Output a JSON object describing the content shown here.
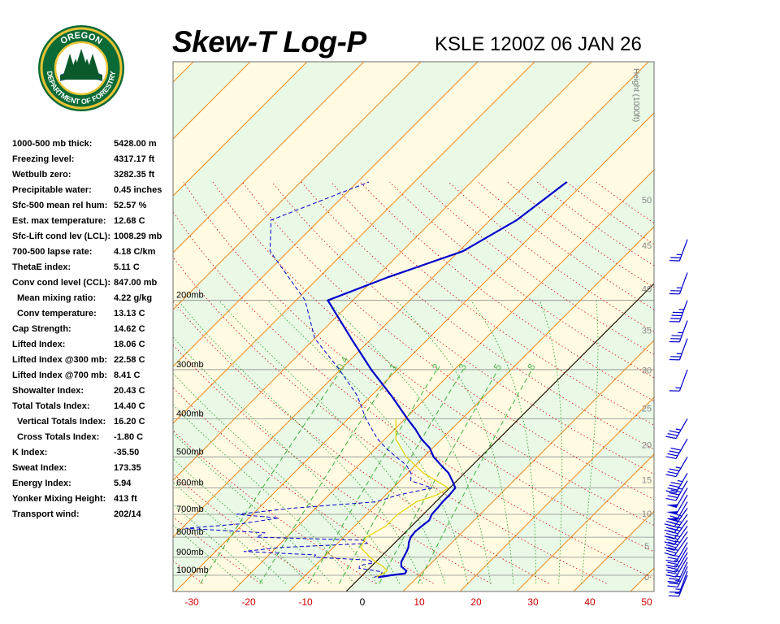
{
  "header": {
    "logo_text_top": "OREGON",
    "logo_text_bottom": "DEPARTMENT OF FORESTRY",
    "title": "Skew-T Log-P",
    "station": "KSLE 1200Z 06 JAN 26"
  },
  "stats": [
    {
      "label": "1000-500 mb thick:",
      "value": "5428.00 m",
      "indent": false
    },
    {
      "label": "Freezing level:",
      "value": "4317.17 ft",
      "indent": false
    },
    {
      "label": "Wetbulb zero:",
      "value": "3282.35 ft",
      "indent": false
    },
    {
      "label": "Precipitable water:",
      "value": "0.45 inches",
      "indent": false
    },
    {
      "label": "Sfc-500 mean rel hum:",
      "value": "52.57 %",
      "indent": false
    },
    {
      "label": "Est. max temperature:",
      "value": "12.68 C",
      "indent": false
    },
    {
      "label": "Sfc-Lift cond lev (LCL):",
      "value": "1008.29 mb",
      "indent": false
    },
    {
      "label": "700-500 lapse rate:",
      "value": "4.18 C/km",
      "indent": false
    },
    {
      "label": "ThetaE index:",
      "value": "5.11 C",
      "indent": false
    },
    {
      "label": "Conv cond level (CCL):",
      "value": "847.00 mb",
      "indent": false
    },
    {
      "label": "Mean mixing ratio:",
      "value": "4.22 g/kg",
      "indent": true
    },
    {
      "label": "Conv temperature:",
      "value": "13.13 C",
      "indent": true
    },
    {
      "label": "Cap Strength:",
      "value": "14.62 C",
      "indent": false
    },
    {
      "label": "Lifted Index:",
      "value": "18.06 C",
      "indent": false
    },
    {
      "label": "Lifted Index @300 mb:",
      "value": "22.58 C",
      "indent": false
    },
    {
      "label": "Lifted Index @700 mb:",
      "value": "8.41 C",
      "indent": false
    },
    {
      "label": "Showalter Index:",
      "value": "20.43 C",
      "indent": false
    },
    {
      "label": "Total Totals Index:",
      "value": "14.40 C",
      "indent": false
    },
    {
      "label": "Vertical Totals Index:",
      "value": "16.20 C",
      "indent": true
    },
    {
      "label": "Cross Totals Index:",
      "value": "-1.80 C",
      "indent": true
    },
    {
      "label": "K Index:",
      "value": "-35.50",
      "indent": false
    },
    {
      "label": "Sweat Index:",
      "value": "173.35",
      "indent": false
    },
    {
      "label": "Energy Index:",
      "value": "5.94",
      "indent": false
    },
    {
      "label": "Yonker Mixing Height:",
      "value": "413 ft",
      "indent": false
    },
    {
      "label": "Transport wind:",
      "value": "202/14",
      "indent": false
    }
  ],
  "chart_data": {
    "type": "line",
    "title": "Skew-T Log-P",
    "xlabel": "",
    "ylabel": "",
    "x_ticks": [
      "-30",
      "-20",
      "-10",
      "0",
      "10",
      "20",
      "30",
      "40",
      "50"
    ],
    "pressure_labels": [
      {
        "p": 200,
        "label": "200mb"
      },
      {
        "p": 300,
        "label": "300mb"
      },
      {
        "p": 400,
        "label": "400mb"
      },
      {
        "p": 500,
        "label": "500mb"
      },
      {
        "p": 600,
        "label": "600mb"
      },
      {
        "p": 700,
        "label": "700mb"
      },
      {
        "p": 800,
        "label": "800mb"
      },
      {
        "p": 900,
        "label": "900mb"
      },
      {
        "p": 1000,
        "label": "1000mb"
      }
    ],
    "height_axis": {
      "label": "Height (1000ft)",
      "ticks": [
        {
          "p": 1010,
          "label": "0"
        },
        {
          "p": 843,
          "label": "5"
        },
        {
          "p": 697,
          "label": "10"
        },
        {
          "p": 572,
          "label": "15"
        },
        {
          "p": 466,
          "label": "20"
        },
        {
          "p": 376,
          "label": "25"
        },
        {
          "p": 301,
          "label": "30"
        },
        {
          "p": 238,
          "label": "35"
        },
        {
          "p": 187,
          "label": "40"
        },
        {
          "p": 145,
          "label": "45"
        },
        {
          "p": 111,
          "label": "50"
        }
      ]
    },
    "mixing_ratio_labels": [
      "0.4",
      "1",
      "2",
      "3",
      "5",
      "8"
    ],
    "mixing_ratio_values": [
      0.4,
      1,
      2,
      3,
      5,
      8
    ],
    "series": [
      {
        "role": "temperature",
        "color": "#0000cc",
        "style": "solid",
        "points": [
          {
            "p": 1012,
            "t": 3.1
          },
          {
            "p": 1000,
            "t": 5.0
          },
          {
            "p": 990,
            "t": 7.2
          },
          {
            "p": 975,
            "t": 7.0
          },
          {
            "p": 950,
            "t": 5.3
          },
          {
            "p": 925,
            "t": 4.5
          },
          {
            "p": 900,
            "t": 4.1
          },
          {
            "p": 875,
            "t": 3.7
          },
          {
            "p": 850,
            "t": 3.2
          },
          {
            "p": 825,
            "t": 2.4
          },
          {
            "p": 800,
            "t": 1.8
          },
          {
            "p": 775,
            "t": 1.6
          },
          {
            "p": 750,
            "t": 1.8
          },
          {
            "p": 725,
            "t": 2.1
          },
          {
            "p": 700,
            "t": 1.5
          },
          {
            "p": 675,
            "t": 1.4
          },
          {
            "p": 650,
            "t": 1.2
          },
          {
            "p": 625,
            "t": 1.2
          },
          {
            "p": 600,
            "t": 1.0
          },
          {
            "p": 575,
            "t": -0.8
          },
          {
            "p": 550,
            "t": -2.8
          },
          {
            "p": 525,
            "t": -5.5
          },
          {
            "p": 500,
            "t": -8.3
          },
          {
            "p": 475,
            "t": -10.5
          },
          {
            "p": 450,
            "t": -13.6
          },
          {
            "p": 425,
            "t": -16.4
          },
          {
            "p": 400,
            "t": -19.6
          },
          {
            "p": 350,
            "t": -26.4
          },
          {
            "p": 300,
            "t": -34.6
          },
          {
            "p": 250,
            "t": -43.6
          },
          {
            "p": 200,
            "t": -54.4
          },
          {
            "p": 175,
            "t": -48.0
          },
          {
            "p": 150,
            "t": -39.3
          },
          {
            "p": 125,
            "t": -35.3
          },
          {
            "p": 100,
            "t": -33.2
          }
        ]
      },
      {
        "role": "dewpoint",
        "color": "#0000cc",
        "style": "dashed",
        "points": [
          {
            "p": 1012,
            "t": 2.4
          },
          {
            "p": 1000,
            "t": 3.2
          },
          {
            "p": 980,
            "t": 2.9
          },
          {
            "p": 960,
            "t": -1.8
          },
          {
            "p": 945,
            "t": -2.2
          },
          {
            "p": 930,
            "t": -0.3
          },
          {
            "p": 915,
            "t": -1.5
          },
          {
            "p": 900,
            "t": -11.6
          },
          {
            "p": 888,
            "t": -11.8
          },
          {
            "p": 870,
            "t": -25.0
          },
          {
            "p": 850,
            "t": -19.3
          },
          {
            "p": 830,
            "t": -4.8
          },
          {
            "p": 815,
            "t": -5.5
          },
          {
            "p": 800,
            "t": -25.3
          },
          {
            "p": 780,
            "t": -24.6
          },
          {
            "p": 760,
            "t": -39.3
          },
          {
            "p": 740,
            "t": -30.4
          },
          {
            "p": 715,
            "t": -24.8
          },
          {
            "p": 700,
            "t": -32.8
          },
          {
            "p": 675,
            "t": -24.0
          },
          {
            "p": 650,
            "t": -10.4
          },
          {
            "p": 625,
            "t": -7.8
          },
          {
            "p": 600,
            "t": -3.1
          },
          {
            "p": 575,
            "t": -8.1
          },
          {
            "p": 550,
            "t": -9.4
          },
          {
            "p": 525,
            "t": -11.6
          },
          {
            "p": 500,
            "t": -14.9
          },
          {
            "p": 475,
            "t": -18.2
          },
          {
            "p": 450,
            "t": -21.3
          },
          {
            "p": 400,
            "t": -26.9
          },
          {
            "p": 350,
            "t": -32.4
          },
          {
            "p": 300,
            "t": -40.2
          },
          {
            "p": 250,
            "t": -50.0
          },
          {
            "p": 200,
            "t": -58.4
          },
          {
            "p": 150,
            "t": -73.2
          },
          {
            "p": 125,
            "t": -78.5
          },
          {
            "p": 100,
            "t": -68.0
          }
        ]
      },
      {
        "role": "parcel",
        "color": "#e6d200",
        "style": "solid",
        "points": [
          {
            "p": 1010,
            "t": 2.8
          },
          {
            "p": 975,
            "t": 3.6
          },
          {
            "p": 950,
            "t": 2.1
          },
          {
            "p": 925,
            "t": 0.0
          },
          {
            "p": 900,
            "t": -1.8
          },
          {
            "p": 850,
            "t": -5.2
          },
          {
            "p": 800,
            "t": -6.0
          },
          {
            "p": 750,
            "t": -4.5
          },
          {
            "p": 700,
            "t": -4.5
          },
          {
            "p": 650,
            "t": -3.4
          },
          {
            "p": 625,
            "t": -1.0
          },
          {
            "p": 600,
            "t": -0.2
          },
          {
            "p": 550,
            "t": -7.2
          },
          {
            "p": 500,
            "t": -13.1
          },
          {
            "p": 450,
            "t": -18.1
          },
          {
            "p": 400,
            "t": -21.6
          }
        ]
      }
    ],
    "wind_barbs": [
      {
        "p": 1000,
        "dir": 202,
        "spd": 14
      },
      {
        "p": 975,
        "dir": 200,
        "spd": 15
      },
      {
        "p": 950,
        "dir": 205,
        "spd": 25
      },
      {
        "p": 925,
        "dir": 205,
        "spd": 25
      },
      {
        "p": 900,
        "dir": 210,
        "spd": 25
      },
      {
        "p": 875,
        "dir": 210,
        "spd": 25
      },
      {
        "p": 850,
        "dir": 210,
        "spd": 25
      },
      {
        "p": 825,
        "dir": 210,
        "spd": 30
      },
      {
        "p": 800,
        "dir": 215,
        "spd": 30
      },
      {
        "p": 775,
        "dir": 215,
        "spd": 35
      },
      {
        "p": 750,
        "dir": 215,
        "spd": 35
      },
      {
        "p": 725,
        "dir": 215,
        "spd": 45
      },
      {
        "p": 700,
        "dir": 215,
        "spd": 45
      },
      {
        "p": 675,
        "dir": 215,
        "spd": 45
      },
      {
        "p": 650,
        "dir": 210,
        "spd": 50
      },
      {
        "p": 625,
        "dir": 210,
        "spd": 50
      },
      {
        "p": 600,
        "dir": 210,
        "spd": 50
      },
      {
        "p": 575,
        "dir": 210,
        "spd": 45
      },
      {
        "p": 550,
        "dir": 210,
        "spd": 45
      },
      {
        "p": 500,
        "dir": 210,
        "spd": 35
      },
      {
        "p": 450,
        "dir": 210,
        "spd": 40
      },
      {
        "p": 400,
        "dir": 210,
        "spd": 35
      },
      {
        "p": 300,
        "dir": 200,
        "spd": 15
      },
      {
        "p": 250,
        "dir": 200,
        "spd": 25
      },
      {
        "p": 225,
        "dir": 200,
        "spd": 35
      },
      {
        "p": 200,
        "dir": 200,
        "spd": 45
      },
      {
        "p": 170,
        "dir": 200,
        "spd": 25
      },
      {
        "p": 140,
        "dir": 200,
        "spd": 25
      }
    ],
    "grid": true
  }
}
